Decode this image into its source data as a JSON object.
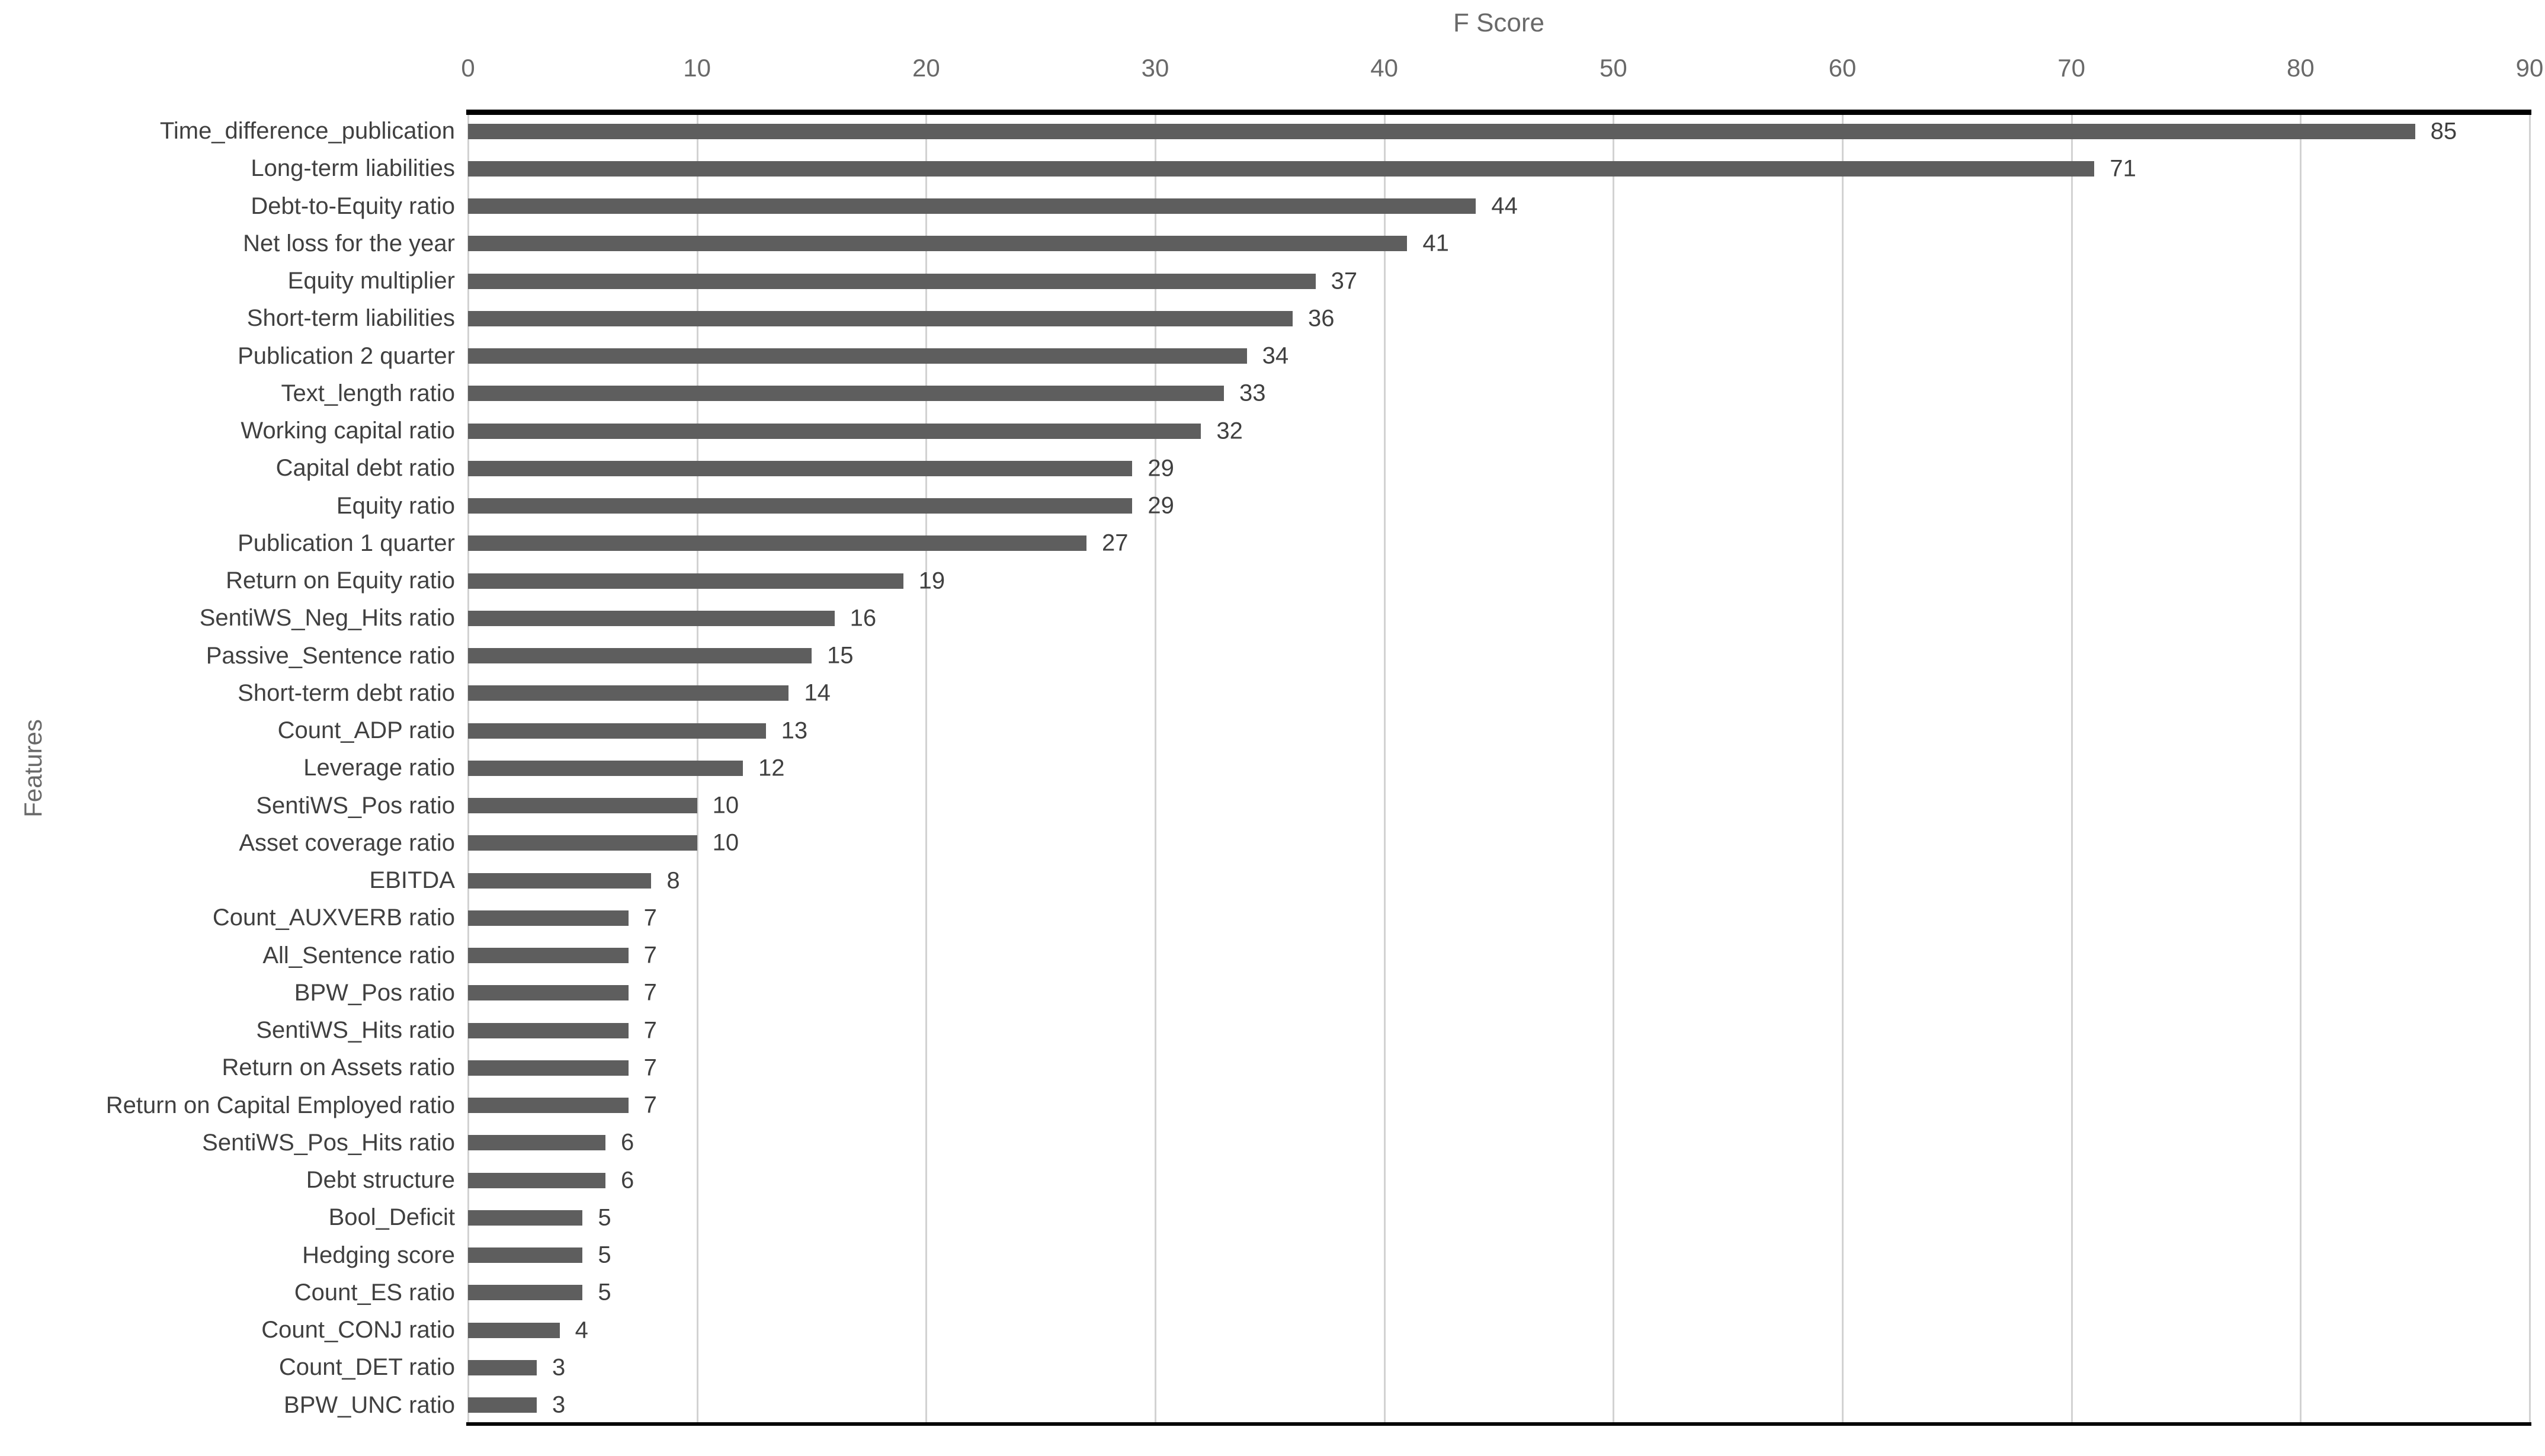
{
  "page": {
    "background": "#ffffff"
  },
  "chart_data": {
    "type": "bar",
    "orientation": "horizontal",
    "title": "",
    "xlabel": "F Score",
    "ylabel": "Features",
    "xlabel_position": "top",
    "xlim": [
      0,
      90
    ],
    "xticks": [
      0,
      10,
      20,
      30,
      40,
      50,
      60,
      70,
      80,
      90
    ],
    "grid": true,
    "legend": false,
    "data_labels": true,
    "categories": [
      "Time_difference_publication",
      "Long-term liabilities",
      "Debt-to-Equity ratio",
      "Net loss for the year",
      "Equity multiplier",
      "Short-term liabilities",
      "Publication 2 quarter",
      "Text_length ratio",
      "Working capital ratio",
      "Capital debt ratio",
      "Equity ratio",
      "Publication 1 quarter",
      "Return on Equity ratio",
      "SentiWS_Neg_Hits ratio",
      "Passive_Sentence ratio",
      "Short-term debt ratio",
      "Count_ADP ratio",
      "Leverage ratio",
      "SentiWS_Pos ratio",
      "Asset coverage ratio",
      "EBITDA",
      "Count_AUXVERB ratio",
      "All_Sentence ratio",
      "BPW_Pos ratio",
      "SentiWS_Hits ratio",
      "Return on Assets ratio",
      "Return on Capital Employed ratio",
      "SentiWS_Pos_Hits ratio",
      "Debt structure",
      "Bool_Deficit",
      "Hedging score",
      "Count_ES ratio",
      "Count_CONJ ratio",
      "Count_DET ratio",
      "BPW_UNC ratio"
    ],
    "values": [
      85,
      71,
      44,
      41,
      37,
      36,
      34,
      33,
      32,
      29,
      29,
      27,
      19,
      16,
      15,
      14,
      13,
      12,
      10,
      10,
      8,
      7,
      7,
      7,
      7,
      7,
      7,
      6,
      6,
      5,
      5,
      5,
      4,
      3,
      3
    ],
    "colors": {
      "bar": "#5e5e5e",
      "gridline": "#d2d2d2",
      "axis_line": "#000000",
      "tick_text": "#696969",
      "title_text": "#696969",
      "category_text": "#404040",
      "value_text": "#404040"
    }
  }
}
